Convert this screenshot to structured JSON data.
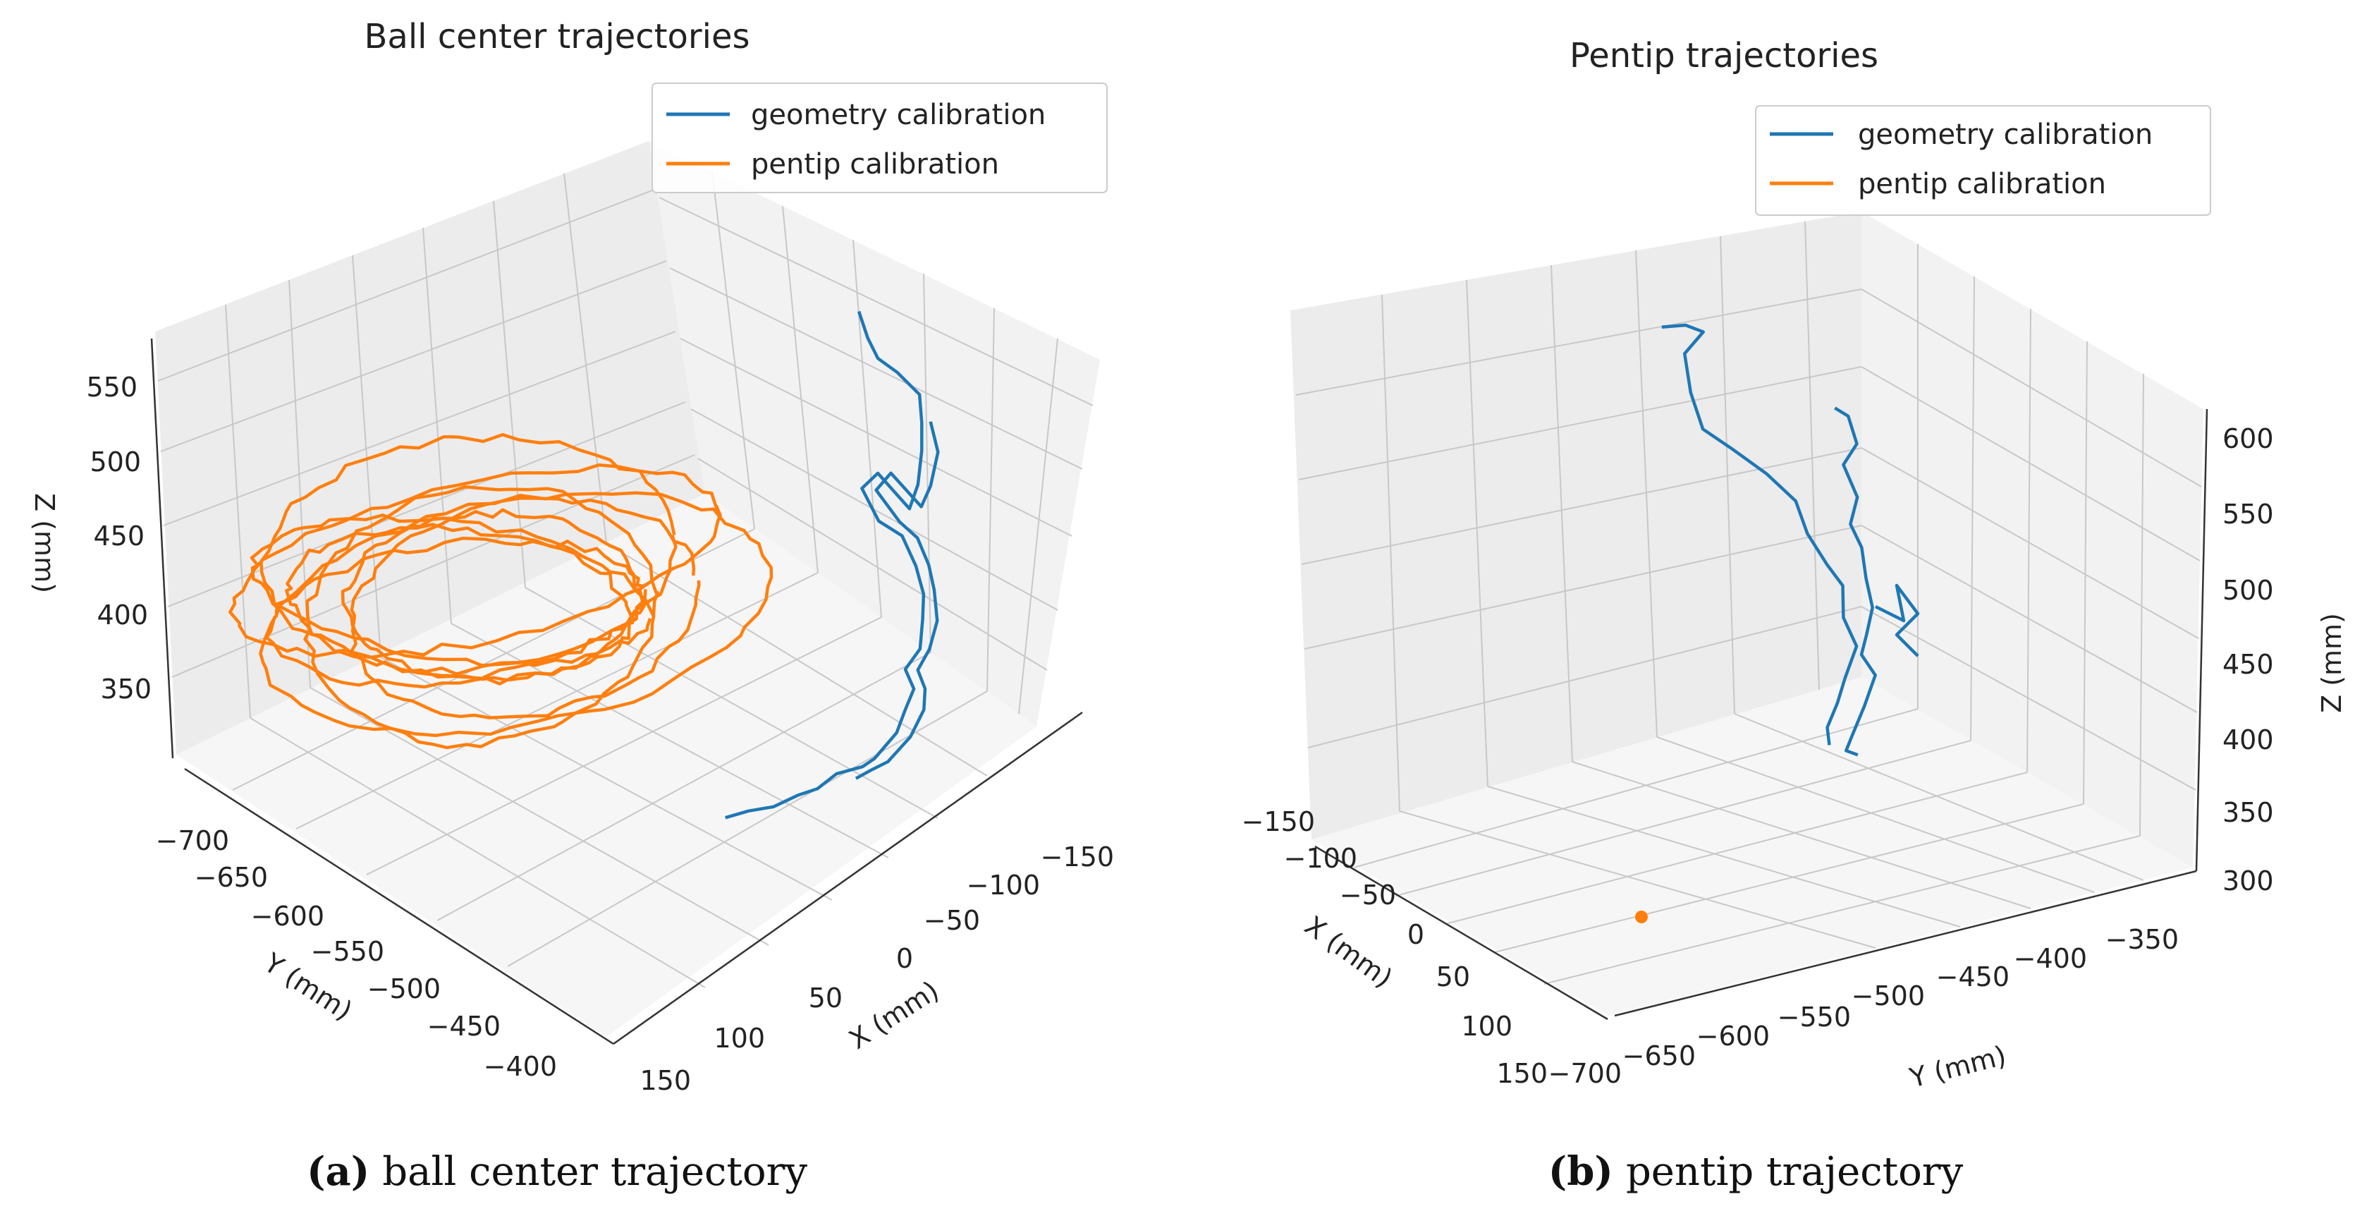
{
  "colors": {
    "geometry": "#1f77b4",
    "pentip": "#ff7f0e"
  },
  "legend": [
    "geometry calibration",
    "pentip calibration"
  ],
  "chart_data": [
    {
      "type": "line3d",
      "title": "Ball center trajectories",
      "caption_letter": "(a)",
      "caption_text": "ball center trajectory",
      "xlabel": "X (mm)",
      "ylabel": "Y (mm)",
      "zlabel": "Z (mm)",
      "xticks": [
        "150",
        "100",
        "50",
        "0",
        "−50",
        "−100",
        "−150"
      ],
      "yticks": [
        "−700",
        "−650",
        "−600",
        "−550",
        "−500",
        "−450",
        "−400"
      ],
      "zticks": [
        "550",
        "500",
        "450",
        "400",
        "350"
      ],
      "series": [
        {
          "name": "geometry calibration",
          "description": "vertical path near X ≈ -100 to 100 mm, rising from Z ≈ 330 to 560 mm"
        },
        {
          "name": "pentip calibration",
          "description": "looping path, Z ≈ 380–480 mm"
        }
      ]
    },
    {
      "type": "line3d",
      "title": "Pentip trajectories",
      "caption_letter": "(b)",
      "caption_text": "pentip trajectory",
      "xlabel": "X (mm)",
      "ylabel": "Y (mm)",
      "zlabel": "Z (mm)",
      "xticks": [
        "−150",
        "−100",
        "−50",
        "0",
        "50",
        "100",
        "150"
      ],
      "yticks": [
        "−700",
        "−650",
        "−600",
        "−550",
        "−500",
        "−450",
        "−400",
        "−350"
      ],
      "zticks": [
        "600",
        "550",
        "500",
        "450",
        "400",
        "350",
        "300"
      ],
      "series": [
        {
          "name": "geometry calibration",
          "description": "two vertical strands, Z ≈ 380–600 mm"
        },
        {
          "name": "pentip calibration",
          "description": "single point near floor"
        }
      ]
    }
  ]
}
